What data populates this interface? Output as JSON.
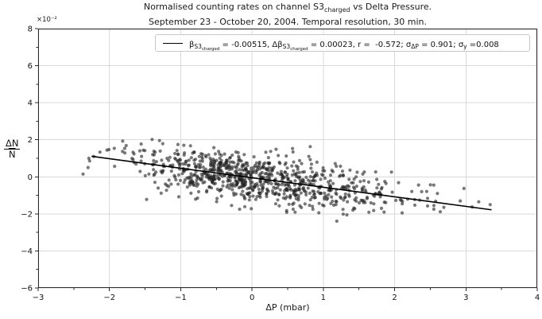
{
  "figure": {
    "title_line1_prefix": "Normalised counting rates on channel S3",
    "title_line1_sub": "charged",
    "title_line1_suffix": " vs Delta Pressure.",
    "title_line2": "September 23 - October 20, 2004. Temporal resolution, 30 min."
  },
  "axes": {
    "offset_text": "×10⁻²",
    "xlabel": "ΔP (mbar)",
    "ylabel_numerator": "ΔN",
    "ylabel_denominator": "N"
  },
  "legend": {
    "segments": [
      {
        "t": "β",
        "s": 0
      },
      {
        "t": "S3",
        "s": 1
      },
      {
        "t": "charged",
        "s": 2
      },
      {
        "t": " = -0.00515, ",
        "s": 0
      },
      {
        "t": "Δβ",
        "s": 0
      },
      {
        "t": "S3",
        "s": 1
      },
      {
        "t": "charged",
        "s": 2
      },
      {
        "t": " = 0.00023, r =  -0.572; ",
        "s": 0
      },
      {
        "t": "σ",
        "s": 0
      },
      {
        "t": "ΔP",
        "s": 1
      },
      {
        "t": " = 0.901; ",
        "s": 0
      },
      {
        "t": "σ",
        "s": 0
      },
      {
        "t": "y",
        "s": 1
      },
      {
        "t": " =0.008",
        "s": 0
      }
    ]
  },
  "chart_data": {
    "type": "scatter",
    "title": "Normalised counting rates on channel S3charged vs Delta Pressure. September 23 - October 20, 2004. Temporal resolution, 30 min.",
    "xlabel": "ΔP (mbar)",
    "ylabel": "ΔN/N̄ (×10⁻²)",
    "xlim": [
      -3,
      4
    ],
    "ylim_e2": [
      -6,
      8
    ],
    "x_ticks": [
      -3,
      -2,
      -1,
      0,
      1,
      2,
      3,
      4
    ],
    "y_ticks_e2": [
      -6,
      -4,
      -2,
      0,
      2,
      4,
      6,
      8
    ],
    "x_minor_step": 0.5,
    "y_minor_step": 1,
    "grid": true,
    "legend_position": "upper right",
    "fit": {
      "slope": -0.00515,
      "slope_err": 0.00023,
      "intercept_e2": -0.05,
      "r": -0.572,
      "sigma_dp": 0.901,
      "sigma_y": 0.008,
      "x_start": -2.25,
      "x_end": 3.36
    },
    "scatter_spec": {
      "n": 880,
      "seed": 20041023,
      "x_mean": 0.02,
      "x_sigma_neg": 0.8,
      "x_sigma_pos": 1.02,
      "x_min": -2.42,
      "x_max": 3.45,
      "resid_sigma_e2": 0.64,
      "y_min_e2": -2.75,
      "y_max_e2": 2.3
    },
    "extra_points": [
      [
        3.34,
        -1.5
      ],
      [
        3.18,
        -1.35
      ],
      [
        2.92,
        -1.3
      ],
      [
        2.6,
        -0.9
      ],
      [
        2.55,
        -1.75
      ],
      [
        -2.37,
        0.15
      ],
      [
        -2.3,
        0.5
      ],
      [
        -2.22,
        1.1
      ]
    ],
    "point_color": "#1f1f1f",
    "point_opacity": 0.6,
    "point_radius": 2.1,
    "line_color": "#000000",
    "grid_color": "#d9d9d9",
    "spine_color": "#2a2a2a",
    "tick_label_color": "#111111"
  }
}
